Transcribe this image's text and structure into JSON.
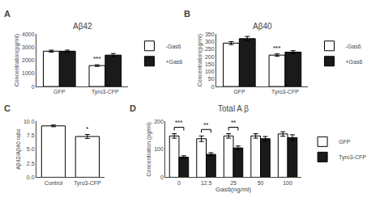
{
  "chart_data": [
    {
      "type": "bar",
      "title": "Aβ42",
      "categories": [
        "GFP",
        "Tyro3-CFP"
      ],
      "series": [
        {
          "name": "-Gas6",
          "color": "#ffffff",
          "values": [
            2700,
            1600
          ],
          "errors": [
            80,
            60
          ]
        },
        {
          "name": "+Gas6",
          "color": "#1a1a1a",
          "values": [
            2700,
            2400
          ],
          "errors": [
            80,
            120
          ]
        }
      ],
      "ylabel": "Concentration(pg/ml)",
      "ylim": [
        0,
        4000
      ],
      "yticks": [
        0,
        1000,
        2000,
        3000,
        4000
      ],
      "grid": false,
      "legend": "upper right",
      "annotations": [
        {
          "text": "A"
        },
        {
          "text": "***",
          "category": "Tyro3-CFP",
          "series": "-Gas6"
        }
      ]
    },
    {
      "type": "bar",
      "title": "Aβ40",
      "categories": [
        "GFP",
        "Tyro3-CFP"
      ],
      "series": [
        {
          "name": "-Gas6",
          "color": "#ffffff",
          "values": [
            290,
            210
          ],
          "errors": [
            10,
            8
          ]
        },
        {
          "name": "+Gas6",
          "color": "#1a1a1a",
          "values": [
            320,
            230
          ],
          "errors": [
            15,
            10
          ]
        }
      ],
      "ylabel": "Concentration(pg/ml)",
      "ylim": [
        0,
        350
      ],
      "yticks": [
        0,
        50,
        100,
        150,
        200,
        250,
        300,
        350
      ],
      "grid": false,
      "legend": "upper right",
      "annotations": [
        {
          "text": "B"
        },
        {
          "text": "***",
          "category": "Tyro3-CFP",
          "series": "-Gas6"
        }
      ]
    },
    {
      "type": "bar",
      "categories": [
        "Control",
        "Tyro3-CFP"
      ],
      "values": [
        9.2,
        7.3
      ],
      "errors": [
        0.15,
        0.35
      ],
      "color": "#ffffff",
      "ylabel": "Aβ42/Aβ40 ratio",
      "ylim": [
        0,
        10
      ],
      "yticks": [
        {
          "value": 0,
          "label": "0.0"
        },
        2.5,
        {
          "value": 5,
          "label": "5.0"
        },
        7.5,
        {
          "value": 10,
          "label": "10.0"
        }
      ],
      "grid": false,
      "annotations": [
        {
          "text": "C"
        },
        {
          "text": "*",
          "category": "Tyro3-CFP"
        }
      ]
    },
    {
      "type": "bar",
      "title": "Total A β",
      "categories": [
        "0",
        "12.5",
        "25",
        "50",
        "100"
      ],
      "series": [
        {
          "name": "GFP",
          "color": "#ffffff",
          "values": [
            148,
            138,
            148,
            148,
            155
          ],
          "errors": [
            8,
            10,
            8,
            8,
            8
          ]
        },
        {
          "name": "Tyro3-CFP",
          "color": "#1a1a1a",
          "values": [
            72,
            82,
            105,
            138,
            142
          ],
          "errors": [
            5,
            6,
            7,
            8,
            10
          ]
        }
      ],
      "xlabel": "Gas6(ng/ml)",
      "ylabel": "Concentration (pg/ml)",
      "ylim": [
        0,
        200
      ],
      "yticks": [
        0,
        100,
        200
      ],
      "grid": false,
      "legend": "right",
      "annotations": [
        {
          "text": "D"
        },
        {
          "text": "***",
          "category": "0"
        },
        {
          "text": "**",
          "category": "12.5"
        },
        {
          "text": "**",
          "category": "25"
        }
      ]
    }
  ]
}
